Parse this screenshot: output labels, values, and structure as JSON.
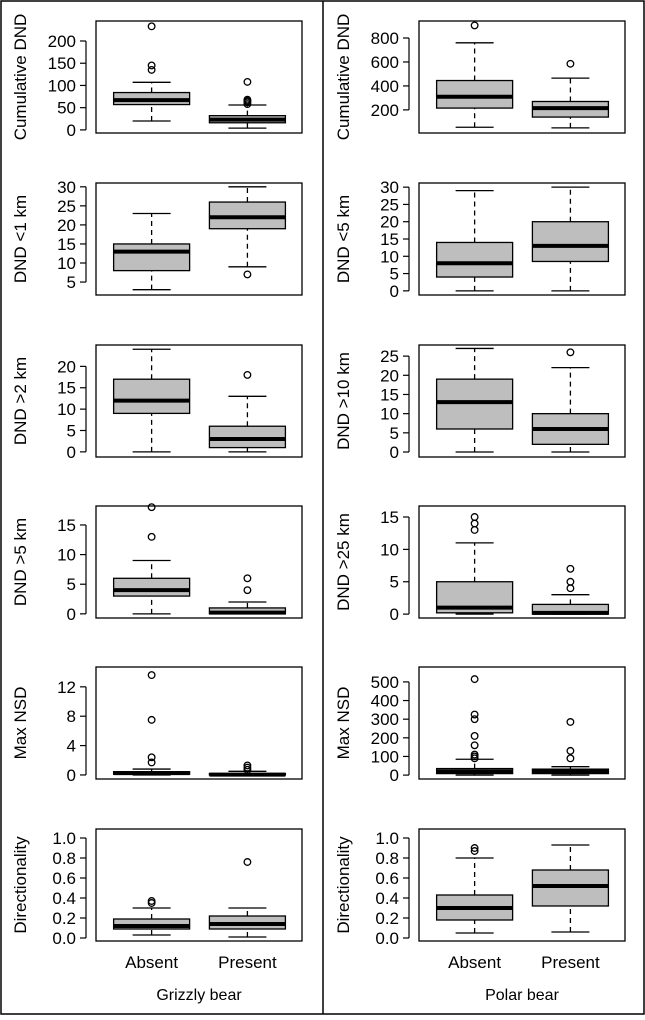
{
  "chart_data": {
    "type": "boxplot",
    "categories": [
      "Absent",
      "Present"
    ],
    "groups": [
      "Grizzly bear",
      "Polar bear"
    ],
    "colors": {
      "box": "#bebebe",
      "line": "#000000"
    },
    "panels": [
      {
        "group": "Grizzly bear",
        "ylabel": "Cumulative DND",
        "ylim": [
          -7,
          245
        ],
        "yticks": [
          0,
          50,
          100,
          150,
          200
        ],
        "ytick_labels": [
          "0",
          "50",
          "100",
          "150",
          "200"
        ],
        "boxes": [
          {
            "category": "Absent",
            "whisker_low": 20,
            "q1": 57,
            "median": 67,
            "q3": 84,
            "whisker_high": 107,
            "outliers": [
              135,
              145,
              233
            ]
          },
          {
            "category": "Present",
            "whisker_low": 4,
            "q1": 16,
            "median": 23,
            "q3": 32,
            "whisker_high": 56,
            "outliers": [
              58,
              62,
              65,
              68,
              108
            ]
          }
        ]
      },
      {
        "group": "Grizzly bear",
        "ylabel": "DND <1 km",
        "ylim": [
          1.6,
          31
        ],
        "yticks": [
          5,
          10,
          15,
          20,
          25,
          30
        ],
        "ytick_labels": [
          "5",
          "10",
          "15",
          "20",
          "25",
          "30"
        ],
        "boxes": [
          {
            "category": "Absent",
            "whisker_low": 3,
            "q1": 8,
            "median": 13,
            "q3": 15,
            "whisker_high": 23,
            "outliers": []
          },
          {
            "category": "Present",
            "whisker_low": 9,
            "q1": 19,
            "median": 22,
            "q3": 26,
            "whisker_high": 30,
            "outliers": [
              7
            ]
          }
        ]
      },
      {
        "group": "Grizzly bear",
        "ylabel": "DND >2 km",
        "ylim": [
          -1.2,
          25
        ],
        "yticks": [
          0,
          5,
          10,
          15,
          20
        ],
        "ytick_labels": [
          "0",
          "5",
          "10",
          "15",
          "20"
        ],
        "boxes": [
          {
            "category": "Absent",
            "whisker_low": 0,
            "q1": 9,
            "median": 12,
            "q3": 17,
            "whisker_high": 24,
            "outliers": []
          },
          {
            "category": "Present",
            "whisker_low": 0,
            "q1": 1,
            "median": 3,
            "q3": 6,
            "whisker_high": 13,
            "outliers": [
              18
            ]
          }
        ]
      },
      {
        "group": "Grizzly bear",
        "ylabel": "DND >5 km",
        "ylim": [
          -0.7,
          18.2
        ],
        "yticks": [
          0,
          5,
          10,
          15
        ],
        "ytick_labels": [
          "0",
          "5",
          "10",
          "15"
        ],
        "boxes": [
          {
            "category": "Absent",
            "whisker_low": 0,
            "q1": 3,
            "median": 4,
            "q3": 6,
            "whisker_high": 9,
            "outliers": [
              13,
              18
            ]
          },
          {
            "category": "Present",
            "whisker_low": 0,
            "q1": 0,
            "median": 0.2,
            "q3": 1,
            "whisker_high": 2,
            "outliers": [
              4,
              6
            ]
          }
        ]
      },
      {
        "group": "Grizzly bear",
        "ylabel": "Max NSD",
        "ylim": [
          -0.55,
          14.7
        ],
        "yticks": [
          0,
          4,
          8,
          12
        ],
        "ytick_labels": [
          "0",
          "4",
          "8",
          "12"
        ],
        "boxes": [
          {
            "category": "Absent",
            "whisker_low": 0,
            "q1": 0.1,
            "median": 0.25,
            "q3": 0.45,
            "whisker_high": 0.8,
            "outliers": [
              1.7,
              2.4,
              7.5,
              13.6
            ]
          },
          {
            "category": "Present",
            "whisker_low": 0,
            "q1": 0,
            "median": 0.05,
            "q3": 0.2,
            "whisker_high": 0.5,
            "outliers": [
              0.7,
              1.0,
              1.3
            ]
          }
        ]
      },
      {
        "group": "Grizzly bear",
        "ylabel": "Directionality",
        "ylim": [
          -0.03,
          1.09
        ],
        "yticks": [
          0,
          0.2,
          0.4,
          0.6,
          0.8,
          1.0
        ],
        "ytick_labels": [
          "0.0",
          "0.2",
          "0.4",
          "0.6",
          "0.8",
          "1.0"
        ],
        "boxes": [
          {
            "category": "Absent",
            "whisker_low": 0.03,
            "q1": 0.09,
            "median": 0.12,
            "q3": 0.19,
            "whisker_high": 0.3,
            "outliers": [
              0.35,
              0.37
            ]
          },
          {
            "category": "Present",
            "whisker_low": 0.01,
            "q1": 0.09,
            "median": 0.14,
            "q3": 0.22,
            "whisker_high": 0.3,
            "outliers": [
              0.76
            ]
          }
        ]
      },
      {
        "group": "Polar bear",
        "ylabel": "Cumulative DND",
        "ylim": [
          7,
          942
        ],
        "yticks": [
          200,
          400,
          600,
          800
        ],
        "ytick_labels": [
          "200",
          "400",
          "600",
          "800"
        ],
        "boxes": [
          {
            "category": "Absent",
            "whisker_low": 55,
            "q1": 215,
            "median": 310,
            "q3": 445,
            "whisker_high": 760,
            "outliers": [
              905
            ]
          },
          {
            "category": "Present",
            "whisker_low": 50,
            "q1": 140,
            "median": 215,
            "q3": 270,
            "whisker_high": 465,
            "outliers": [
              585
            ]
          }
        ]
      },
      {
        "group": "Polar bear",
        "ylabel": "DND <5 km",
        "ylim": [
          -1.2,
          31.2
        ],
        "yticks": [
          0,
          5,
          10,
          15,
          20,
          25,
          30
        ],
        "ytick_labels": [
          "0",
          "5",
          "10",
          "15",
          "20",
          "25",
          "30"
        ],
        "boxes": [
          {
            "category": "Absent",
            "whisker_low": 0,
            "q1": 4,
            "median": 8,
            "q3": 14,
            "whisker_high": 29,
            "outliers": []
          },
          {
            "category": "Present",
            "whisker_low": 0,
            "q1": 8.5,
            "median": 13,
            "q3": 20,
            "whisker_high": 30,
            "outliers": []
          }
        ]
      },
      {
        "group": "Polar bear",
        "ylabel": "DND >10 km",
        "ylim": [
          -1.3,
          27.9
        ],
        "yticks": [
          0,
          5,
          10,
          15,
          20,
          25
        ],
        "ytick_labels": [
          "0",
          "5",
          "10",
          "15",
          "20",
          "25"
        ],
        "boxes": [
          {
            "category": "Absent",
            "whisker_low": 0,
            "q1": 6,
            "median": 13,
            "q3": 19,
            "whisker_high": 27,
            "outliers": []
          },
          {
            "category": "Present",
            "whisker_low": 0,
            "q1": 2,
            "median": 6,
            "q3": 10,
            "whisker_high": 22,
            "outliers": [
              26
            ]
          }
        ]
      },
      {
        "group": "Polar bear",
        "ylabel": "DND >25 km",
        "ylim": [
          -0.6,
          16.7
        ],
        "yticks": [
          0,
          5,
          10,
          15
        ],
        "ytick_labels": [
          "0",
          "5",
          "10",
          "15"
        ],
        "boxes": [
          {
            "category": "Absent",
            "whisker_low": 0,
            "q1": 0.2,
            "median": 1,
            "q3": 5,
            "whisker_high": 11,
            "outliers": [
              13,
              14,
              15
            ]
          },
          {
            "category": "Present",
            "whisker_low": 0,
            "q1": 0,
            "median": 0.2,
            "q3": 1.5,
            "whisker_high": 3,
            "outliers": [
              4,
              5,
              7
            ]
          }
        ]
      },
      {
        "group": "Polar bear",
        "ylabel": "Max NSD",
        "ylim": [
          -21,
          580
        ],
        "yticks": [
          0,
          100,
          200,
          300,
          400,
          500
        ],
        "ytick_labels": [
          "0",
          "100",
          "200",
          "300",
          "400",
          "500"
        ],
        "boxes": [
          {
            "category": "Absent",
            "whisker_low": 0,
            "q1": 8,
            "median": 20,
            "q3": 35,
            "whisker_high": 85,
            "outliers": [
              90,
              100,
              110,
              160,
              210,
              300,
              325,
              515
            ]
          },
          {
            "category": "Present",
            "whisker_low": 0,
            "q1": 8,
            "median": 20,
            "q3": 32,
            "whisker_high": 45,
            "outliers": [
              90,
              130,
              285
            ]
          }
        ]
      },
      {
        "group": "Polar bear",
        "ylabel": "Directionality",
        "ylim": [
          -0.03,
          1.09
        ],
        "yticks": [
          0,
          0.2,
          0.4,
          0.6,
          0.8,
          1.0
        ],
        "ytick_labels": [
          "0.0",
          "0.2",
          "0.4",
          "0.6",
          "0.8",
          "1.0"
        ],
        "boxes": [
          {
            "category": "Absent",
            "whisker_low": 0.05,
            "q1": 0.18,
            "median": 0.3,
            "q3": 0.43,
            "whisker_high": 0.8,
            "outliers": [
              0.87,
              0.9
            ]
          },
          {
            "category": "Present",
            "whisker_low": 0.06,
            "q1": 0.32,
            "median": 0.52,
            "q3": 0.68,
            "whisker_high": 0.93,
            "outliers": []
          }
        ]
      }
    ]
  }
}
